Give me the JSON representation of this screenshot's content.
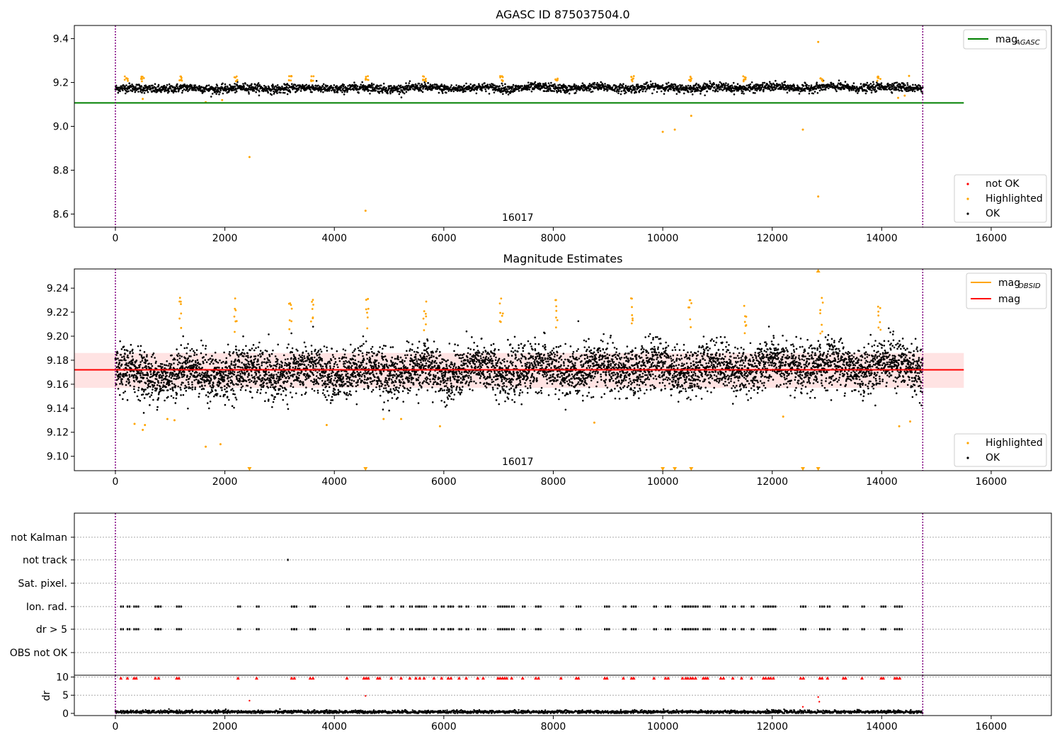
{
  "chart_data": [
    {
      "type": "scatter",
      "title": "AGASC ID 875037504.0",
      "xlim": [
        -750,
        17100
      ],
      "ylim": [
        8.54,
        9.46
      ],
      "x_ticks": [
        "0",
        "2000",
        "4000",
        "6000",
        "8000",
        "10000",
        "12000",
        "14000",
        "16000"
      ],
      "y_ticks": [
        "8.6",
        "8.8",
        "9.0",
        "9.2",
        "9.4"
      ],
      "obsid_label": "16017",
      "obsid_label_x": 7350,
      "vlines": [
        0,
        14750
      ],
      "hlines": [
        {
          "name": "mag_AGASC",
          "y": 9.107,
          "x_range": [
            -750,
            15500
          ],
          "color": "#008000"
        }
      ],
      "baseline": {
        "center_from": 9.172,
        "center_to": 9.178,
        "spread": 0.014
      },
      "outliers": [
        [
          2450,
          8.86
        ],
        [
          4570,
          8.615
        ],
        [
          10000,
          8.975
        ],
        [
          10220,
          8.985
        ],
        [
          10520,
          9.048
        ],
        [
          12560,
          8.985
        ],
        [
          12840,
          8.68
        ],
        [
          12840,
          9.385
        ],
        [
          1650,
          9.11
        ],
        [
          1950,
          9.12
        ],
        [
          500,
          9.125
        ],
        [
          14300,
          9.13
        ],
        [
          14420,
          9.14
        ],
        [
          14500,
          9.23
        ]
      ],
      "highlight_x": [
        200,
        500,
        1200,
        2200,
        3200,
        3600,
        4600,
        5650,
        7050,
        8050,
        9450,
        10500,
        11500,
        12900,
        13950
      ],
      "legend_top": [
        {
          "label": "mag",
          "sub": "AGASC",
          "color": "#008000"
        }
      ],
      "legend_bottom": [
        {
          "label": "not OK",
          "color": "#ff0000"
        },
        {
          "label": "Highlighted",
          "color": "#ffa500"
        },
        {
          "label": "OK",
          "color": "#000000"
        }
      ]
    },
    {
      "type": "scatter",
      "title": "Magnitude Estimates",
      "xlim": [
        -750,
        17100
      ],
      "ylim": [
        9.088,
        9.256
      ],
      "x_ticks": [
        "0",
        "2000",
        "4000",
        "6000",
        "8000",
        "10000",
        "12000",
        "14000",
        "16000"
      ],
      "y_ticks": [
        "9.10",
        "9.12",
        "9.14",
        "9.16",
        "9.18",
        "9.20",
        "9.22",
        "9.24"
      ],
      "obsid_label": "16017",
      "obsid_label_x": 7350,
      "vlines": [
        0,
        14750
      ],
      "mag": 9.172,
      "mag_band": [
        9.157,
        9.186
      ],
      "hlines": [
        {
          "name": "mag",
          "y": 9.172,
          "x_range": [
            -750,
            15500
          ],
          "color": "#ff0000"
        }
      ],
      "baseline": {
        "center_from": 9.168,
        "center_to": 9.176,
        "spread": 0.014
      },
      "outliers": [
        [
          350,
          9.127
        ],
        [
          500,
          9.122
        ],
        [
          540,
          9.126
        ],
        [
          950,
          9.131
        ],
        [
          1080,
          9.13
        ],
        [
          1650,
          9.108
        ],
        [
          1920,
          9.11
        ],
        [
          3860,
          9.126
        ],
        [
          4900,
          9.131
        ],
        [
          5220,
          9.131
        ],
        [
          5930,
          9.125
        ],
        [
          14320,
          9.125
        ],
        [
          14520,
          9.129
        ],
        [
          8750,
          9.128
        ],
        [
          12200,
          9.133
        ]
      ],
      "clipped_x": [
        2450,
        4570,
        10000,
        10220,
        10520,
        12560,
        12840
      ],
      "clipped_top_x": [
        12840
      ],
      "highlight_x": [
        1200,
        2200,
        3200,
        3600,
        4600,
        5650,
        7050,
        8050,
        9450,
        10500,
        11500,
        12900,
        13950
      ],
      "legend_top": [
        {
          "label": "mag",
          "sub": "OBSID",
          "color": "#ffa500"
        },
        {
          "label": "mag",
          "sub": "",
          "color": "#ff0000"
        }
      ],
      "legend_bottom": [
        {
          "label": "Highlighted",
          "color": "#ffa500"
        },
        {
          "label": "OK",
          "color": "#000000"
        }
      ]
    },
    {
      "type": "scatter",
      "xlim": [
        -750,
        17100
      ],
      "categories": [
        "not Kalman",
        "not track",
        "Sat. pixel.",
        "Ion. rad.",
        "dr > 5",
        "OBS not OK"
      ],
      "flag_points": {
        "not track": [
          3150
        ],
        "Ion. rad.": [
          100,
          220,
          340,
          380,
          730,
          790,
          1120,
          1160,
          2240,
          2580,
          3220,
          3270,
          3560,
          3610,
          4230,
          4540,
          4580,
          4620,
          4790,
          4830,
          5040,
          5220,
          5380,
          5490,
          5560,
          5640,
          5820,
          5960,
          6080,
          6130,
          6280,
          6410,
          6620,
          6720,
          6990,
          7030,
          7070,
          7110,
          7150,
          7240,
          7440,
          7680,
          7730,
          8140,
          8420,
          8460,
          8940,
          8980,
          9280,
          9430,
          9470,
          9840,
          10050,
          10100,
          10360,
          10420,
          10460,
          10510,
          10550,
          10600,
          10740,
          10780,
          10820,
          11060,
          11110,
          11280,
          11440,
          11620,
          11840,
          11880,
          11930,
          11970,
          12020,
          12520,
          12570,
          12870,
          12910,
          13010,
          13300,
          13340,
          13640,
          13990,
          14030,
          14240,
          14280,
          14330
        ],
        "dr > 5": [
          100,
          220,
          340,
          380,
          730,
          790,
          1120,
          1160,
          2240,
          2580,
          3220,
          3270,
          3560,
          3610,
          4230,
          4540,
          4580,
          4620,
          4790,
          4830,
          5040,
          5220,
          5380,
          5490,
          5560,
          5640,
          5820,
          5960,
          6080,
          6130,
          6280,
          6410,
          6620,
          6720,
          6990,
          7030,
          7070,
          7110,
          7150,
          7240,
          7440,
          7680,
          7730,
          8140,
          8420,
          8460,
          8940,
          8980,
          9280,
          9430,
          9470,
          9840,
          10050,
          10100,
          10360,
          10420,
          10460,
          10510,
          10550,
          10600,
          10740,
          10780,
          10820,
          11060,
          11110,
          11280,
          11440,
          11620,
          11840,
          11880,
          11930,
          11970,
          12020,
          12520,
          12570,
          12870,
          12910,
          13010,
          13300,
          13340,
          13640,
          13990,
          14030,
          14240,
          14280,
          14330
        ]
      },
      "vlines": [
        0,
        14750
      ]
    },
    {
      "type": "scatter",
      "ylabel": "dr",
      "xlim": [
        -750,
        17100
      ],
      "ylim": [
        -0.6,
        10.5
      ],
      "x_ticks": [
        "0",
        "2000",
        "4000",
        "6000",
        "8000",
        "10000",
        "12000",
        "14000",
        "16000"
      ],
      "y_ticks": [
        "0",
        "5",
        "10"
      ],
      "vlines": [
        0,
        14750
      ],
      "clipped_color": "#ff0000",
      "red_points": [
        [
          2450,
          3.5
        ],
        [
          4570,
          4.8
        ],
        [
          12560,
          1.8
        ],
        [
          12840,
          4.5
        ],
        [
          12860,
          3.2
        ]
      ],
      "baseline": {
        "center_from": 0.4,
        "center_to": 0.4,
        "spread": 0.22
      }
    }
  ]
}
